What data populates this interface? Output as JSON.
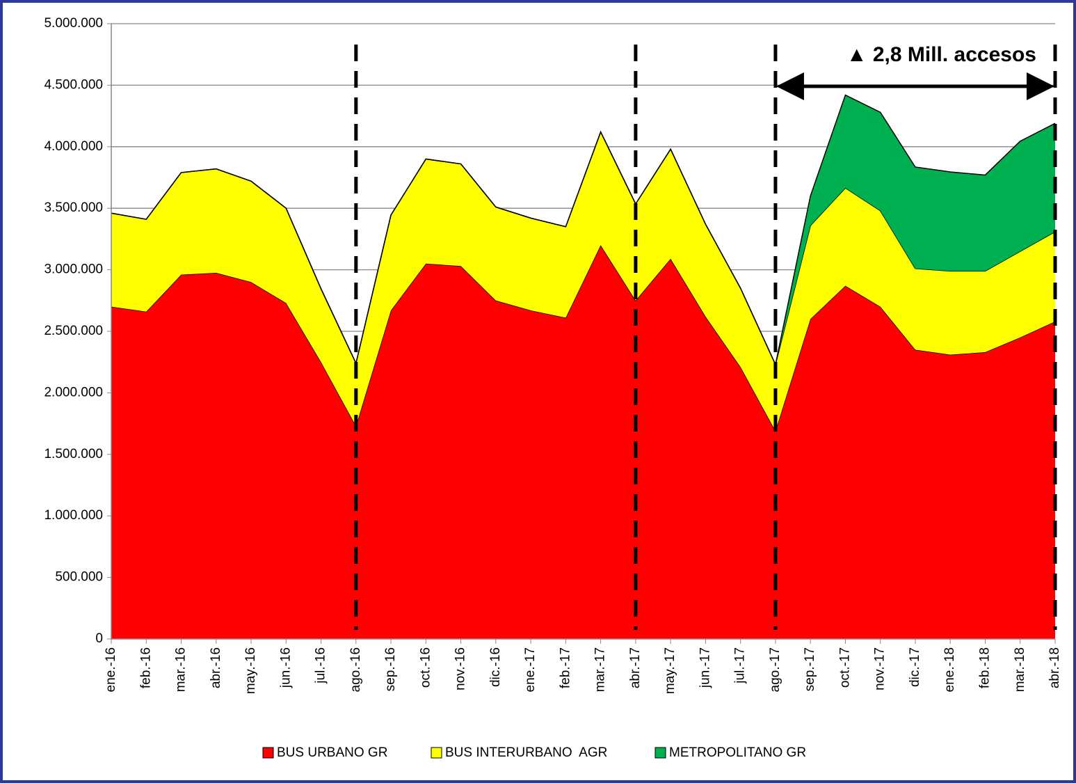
{
  "chart_data": {
    "type": "stacked-area",
    "annotation": "▲ 2,8 Mill. accesos",
    "categories": [
      "ene.-16",
      "feb.-16",
      "mar.-16",
      "abr.-16",
      "may.-16",
      "jun.-16",
      "jul.-16",
      "ago.-16",
      "sep.-16",
      "oct.-16",
      "nov.-16",
      "dic.-16",
      "ene.-17",
      "feb.-17",
      "mar.-17",
      "abr.-17",
      "may.-17",
      "jun.-17",
      "jul.-17",
      "ago.-17",
      "sep.-17",
      "oct.-17",
      "nov.-17",
      "dic.-17",
      "ene.-18",
      "feb.-18",
      "mar.-18",
      "abr.-18"
    ],
    "series": [
      {
        "name": "BUS URBANO GR",
        "color": "#ff0000",
        "values": [
          2700000,
          2660000,
          2960000,
          2975000,
          2900000,
          2730000,
          2250000,
          1730000,
          2670000,
          3050000,
          3030000,
          2750000,
          2670000,
          2610000,
          3200000,
          2750000,
          3090000,
          2620000,
          2210000,
          1690000,
          2600000,
          2870000,
          2700000,
          2350000,
          2310000,
          2330000,
          2450000,
          2580000
        ]
      },
      {
        "name": "BUS INTERURBANO  AGR",
        "color": "#ffff00",
        "values": [
          760000,
          750000,
          830000,
          845000,
          820000,
          770000,
          595000,
          510000,
          775000,
          850000,
          830000,
          760000,
          750000,
          740000,
          920000,
          785000,
          890000,
          750000,
          640000,
          540000,
          760000,
          795000,
          780000,
          660000,
          680000,
          660000,
          700000,
          730000
        ]
      },
      {
        "name": "METROPOLITANO GR",
        "color": "#00b050",
        "values": [
          0,
          0,
          0,
          0,
          0,
          0,
          0,
          0,
          0,
          0,
          0,
          0,
          0,
          0,
          0,
          0,
          0,
          0,
          0,
          0,
          240000,
          755000,
          800000,
          825000,
          805000,
          780000,
          895000,
          880000
        ]
      }
    ],
    "ylim": [
      0,
      5000000
    ],
    "yticks": [
      0,
      {
        "value": 500000,
        "label": "500.000"
      },
      {
        "value": 1000000,
        "label": "1.000.000"
      },
      {
        "value": 1500000,
        "label": "1.500.000"
      },
      {
        "value": 2000000,
        "label": "2.000.000"
      },
      {
        "value": 2500000,
        "label": "2.500.000"
      },
      {
        "value": 3000000,
        "label": "3.000.000"
      },
      {
        "value": 3500000,
        "label": "3.500.000"
      },
      {
        "value": 4000000,
        "label": "4.000.000"
      },
      {
        "value": 4500000,
        "label": "4.500.000"
      },
      {
        "value": 5000000,
        "label": "5.000.000"
      }
    ],
    "grid": true
  }
}
